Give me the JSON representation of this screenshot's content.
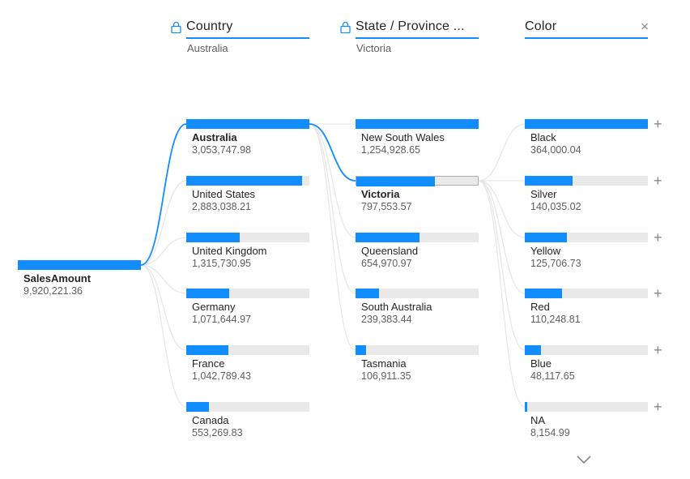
{
  "root": {
    "label": "SalesAmount",
    "value": "9,920,221.36"
  },
  "levels": [
    {
      "title": "Country",
      "subtitle": "Australia",
      "locked": true,
      "items": [
        {
          "label": "Australia",
          "value": "3,053,747.98",
          "fraction": 1.0,
          "selected": true
        },
        {
          "label": "United States",
          "value": "2,883,038.21",
          "fraction": 0.944
        },
        {
          "label": "United Kingdom",
          "value": "1,315,730.95",
          "fraction": 0.431
        },
        {
          "label": "Germany",
          "value": "1,071,644.97",
          "fraction": 0.351
        },
        {
          "label": "France",
          "value": "1,042,789.43",
          "fraction": 0.341
        },
        {
          "label": "Canada",
          "value": "553,269.83",
          "fraction": 0.181
        }
      ]
    },
    {
      "title": "State / Province ...",
      "subtitle": "Victoria",
      "locked": true,
      "items": [
        {
          "label": "New South Wales",
          "value": "1,254,928.65",
          "fraction": 1.0
        },
        {
          "label": "Victoria",
          "value": "797,553.57",
          "fraction": 0.636,
          "selected": true
        },
        {
          "label": "Queensland",
          "value": "654,970.97",
          "fraction": 0.522
        },
        {
          "label": "South Australia",
          "value": "239,383.44",
          "fraction": 0.191
        },
        {
          "label": "Tasmania",
          "value": "106,911.35",
          "fraction": 0.085
        }
      ]
    },
    {
      "title": "Color",
      "subtitle": "",
      "locked": false,
      "items": [
        {
          "label": "Black",
          "value": "364,000.04",
          "fraction": 1.0
        },
        {
          "label": "Silver",
          "value": "140,035.02",
          "fraction": 0.385
        },
        {
          "label": "Yellow",
          "value": "125,706.73",
          "fraction": 0.345
        },
        {
          "label": "Red",
          "value": "110,248.81",
          "fraction": 0.303
        },
        {
          "label": "Blue",
          "value": "48,117.65",
          "fraction": 0.132
        },
        {
          "label": "NA",
          "value": "8,154.99",
          "fraction": 0.022
        }
      ]
    }
  ],
  "icons": {
    "lock": "lock-icon",
    "close": "close-icon",
    "expand": "plus-icon",
    "more": "chevron-down-icon"
  },
  "glyphs": {
    "close": "×",
    "plus": "+"
  },
  "colors": {
    "accent": "#118DFF",
    "track": "#E9E9E9",
    "link": "#E6E6E6"
  }
}
